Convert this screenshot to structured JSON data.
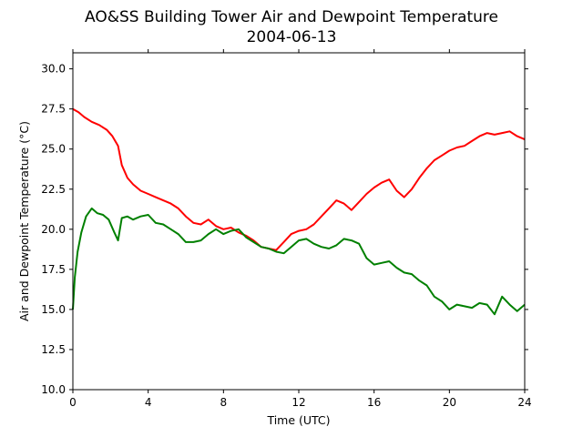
{
  "chart_data": {
    "type": "line",
    "title": "AO&SS Building Tower Air and Dewpoint Temperature",
    "subtitle": "2004-06-13",
    "xlabel": "Time (UTC)",
    "ylabel": "Air and Dewpoint Temperature (°C)",
    "xlim": [
      0,
      24
    ],
    "ylim": [
      10.0,
      31.0
    ],
    "xticks": [
      "0",
      "4",
      "8",
      "12",
      "16",
      "20",
      "24"
    ],
    "yticks": [
      "10.0",
      "12.5",
      "15.0",
      "17.5",
      "20.0",
      "22.5",
      "25.0",
      "27.5",
      "30.0"
    ],
    "grid": false,
    "legend": "none",
    "series": [
      {
        "color": "#ff0000",
        "x": [
          0,
          0.3,
          0.6,
          1.0,
          1.4,
          1.8,
          2.1,
          2.4,
          2.6,
          2.9,
          3.2,
          3.6,
          4.0,
          4.4,
          4.8,
          5.2,
          5.6,
          6.0,
          6.4,
          6.8,
          7.2,
          7.6,
          8.0,
          8.4,
          8.8,
          9.2,
          9.6,
          10.0,
          10.4,
          10.8,
          11.2,
          11.6,
          12.0,
          12.4,
          12.8,
          13.2,
          13.6,
          14.0,
          14.4,
          14.8,
          15.2,
          15.6,
          16.0,
          16.4,
          16.8,
          17.2,
          17.6,
          18.0,
          18.4,
          18.8,
          19.2,
          19.6,
          20.0,
          20.4,
          20.8,
          21.2,
          21.6,
          22.0,
          22.4,
          22.8,
          23.2,
          23.6,
          24.0
        ],
        "values": [
          27.5,
          27.3,
          27.0,
          26.7,
          26.5,
          26.2,
          25.8,
          25.2,
          24.0,
          23.2,
          22.8,
          22.4,
          22.2,
          22.0,
          21.8,
          21.6,
          21.3,
          20.8,
          20.4,
          20.3,
          20.6,
          20.2,
          20.0,
          20.1,
          19.8,
          19.6,
          19.3,
          18.9,
          18.8,
          18.7,
          19.2,
          19.7,
          19.9,
          20.0,
          20.3,
          20.8,
          21.3,
          21.8,
          21.6,
          21.2,
          21.7,
          22.2,
          22.6,
          22.9,
          23.1,
          22.4,
          22.0,
          22.5,
          23.2,
          23.8,
          24.3,
          24.6,
          24.9,
          25.1,
          25.2,
          25.5,
          25.8,
          26.0,
          25.9,
          26.0,
          26.1,
          25.8,
          25.6
        ]
      },
      {
        "color": "#008000",
        "x": [
          0,
          0.1,
          0.25,
          0.45,
          0.7,
          1.0,
          1.3,
          1.6,
          1.9,
          2.2,
          2.4,
          2.6,
          2.9,
          3.2,
          3.6,
          4.0,
          4.4,
          4.8,
          5.2,
          5.6,
          6.0,
          6.4,
          6.8,
          7.2,
          7.6,
          8.0,
          8.4,
          8.8,
          9.2,
          9.6,
          10.0,
          10.4,
          10.8,
          11.2,
          11.6,
          12.0,
          12.4,
          12.8,
          13.2,
          13.6,
          14.0,
          14.4,
          14.8,
          15.2,
          15.6,
          16.0,
          16.4,
          16.8,
          17.2,
          17.6,
          18.0,
          18.4,
          18.8,
          19.2,
          19.6,
          20.0,
          20.4,
          20.8,
          21.2,
          21.6,
          22.0,
          22.4,
          22.8,
          23.2,
          23.6,
          24.0
        ],
        "values": [
          15.0,
          17.0,
          18.6,
          19.8,
          20.8,
          21.3,
          21.0,
          20.9,
          20.6,
          19.8,
          19.3,
          20.7,
          20.8,
          20.6,
          20.8,
          20.9,
          20.4,
          20.3,
          20.0,
          19.7,
          19.2,
          19.2,
          19.3,
          19.7,
          20.0,
          19.7,
          19.9,
          20.0,
          19.5,
          19.2,
          18.9,
          18.8,
          18.6,
          18.5,
          18.9,
          19.3,
          19.4,
          19.1,
          18.9,
          18.8,
          19.0,
          19.4,
          19.3,
          19.1,
          18.2,
          17.8,
          17.9,
          18.0,
          17.6,
          17.3,
          17.2,
          16.8,
          16.5,
          15.8,
          15.5,
          15.0,
          15.3,
          15.2,
          15.1,
          15.4,
          15.3,
          14.7,
          15.8,
          15.3,
          14.9,
          15.3
        ]
      }
    ]
  }
}
